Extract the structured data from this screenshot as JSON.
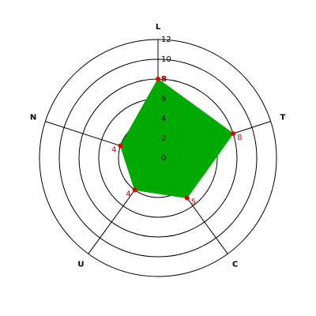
{
  "chart_data": {
    "type": "radar",
    "categories": [
      "L",
      "T",
      "C",
      "U",
      "N"
    ],
    "values": [
      8,
      8,
      5,
      4,
      4
    ],
    "color": "#00aa00",
    "point_color": "#e00000",
    "ylim": [
      0,
      12
    ],
    "yticks": [
      0,
      2,
      4,
      6,
      8,
      10,
      12
    ],
    "grid": true
  }
}
